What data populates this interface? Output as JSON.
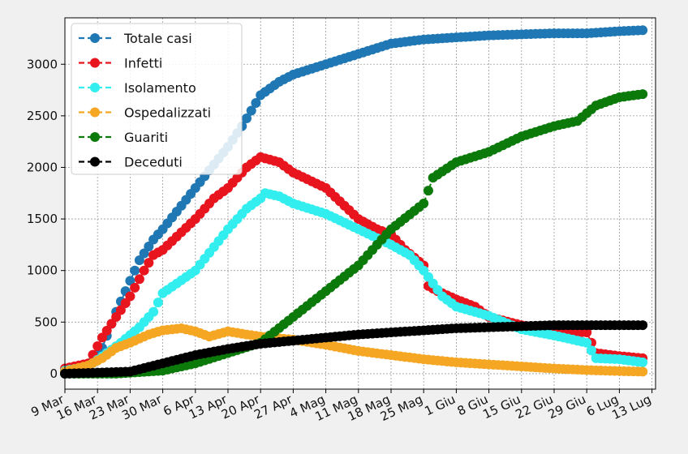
{
  "chart_data": {
    "type": "line",
    "title": "",
    "xlabel": "",
    "ylabel": "",
    "ylim": [
      -150,
      3450
    ],
    "grid": true,
    "legend_position": "top-left",
    "x_ticks": [
      "9 Mar",
      "16 Mar",
      "23 Mar",
      "30 Mar",
      "6 Apr",
      "13 Apr",
      "20 Apr",
      "27 Apr",
      "4 Mag",
      "11 Mag",
      "18 Mag",
      "25 Mag",
      "1 Giu",
      "8 Giu",
      "15 Giu",
      "22 Giu",
      "29 Giu",
      "6 Lug",
      "13 Lug"
    ],
    "y_ticks": [
      0,
      500,
      1000,
      1500,
      2000,
      2500,
      3000
    ],
    "series": [
      {
        "name": "Totale casi",
        "color": "#1f77b4",
        "points": [
          [
            "9 Mar",
            0
          ],
          [
            "14 Mar",
            60
          ],
          [
            "17 Mar",
            250
          ],
          [
            "20 Mar",
            600
          ],
          [
            "23 Mar",
            900
          ],
          [
            "25 Mar",
            1100
          ],
          [
            "28 Mar",
            1300
          ],
          [
            "30 Mar",
            1400
          ],
          [
            "6 Apr",
            1800
          ],
          [
            "13 Apr",
            2200
          ],
          [
            "16 Apr",
            2400
          ],
          [
            "20 Apr",
            2700
          ],
          [
            "24 Apr",
            2830
          ],
          [
            "27 Apr",
            2900
          ],
          [
            "4 Mag",
            3000
          ],
          [
            "11 Mag",
            3100
          ],
          [
            "18 Mag",
            3200
          ],
          [
            "25 Mag",
            3240
          ],
          [
            "1 Giu",
            3260
          ],
          [
            "8 Giu",
            3280
          ],
          [
            "15 Giu",
            3290
          ],
          [
            "22 Giu",
            3300
          ],
          [
            "29 Giu",
            3300
          ],
          [
            "6 Lug",
            3320
          ],
          [
            "11 Lug",
            3330
          ]
        ]
      },
      {
        "name": "Infetti",
        "color": "#e8141e",
        "points": [
          [
            "9 Mar",
            50
          ],
          [
            "14 Mar",
            100
          ],
          [
            "17 Mar",
            350
          ],
          [
            "20 Mar",
            550
          ],
          [
            "23 Mar",
            750
          ],
          [
            "26 Mar",
            1000
          ],
          [
            "28 Mar",
            1150
          ],
          [
            "30 Mar",
            1200
          ],
          [
            "6 Apr",
            1500
          ],
          [
            "10 Apr",
            1700
          ],
          [
            "13 Apr",
            1800
          ],
          [
            "17 Apr",
            2000
          ],
          [
            "20 Apr",
            2100
          ],
          [
            "24 Apr",
            2050
          ],
          [
            "27 Apr",
            1950
          ],
          [
            "4 Mag",
            1800
          ],
          [
            "11 Mag",
            1500
          ],
          [
            "15 Mag",
            1400
          ],
          [
            "18 Mag",
            1350
          ],
          [
            "21 Mag",
            1200
          ],
          [
            "25 Mag",
            1050
          ],
          [
            "26 Mag",
            850
          ],
          [
            "28 Mag",
            800
          ],
          [
            "1 Giu",
            720
          ],
          [
            "5 Giu",
            650
          ],
          [
            "8 Giu",
            550
          ],
          [
            "15 Giu",
            470
          ],
          [
            "22 Giu",
            420
          ],
          [
            "29 Giu",
            400
          ],
          [
            "1 Lug",
            200
          ],
          [
            "6 Lug",
            170
          ],
          [
            "11 Lug",
            150
          ]
        ]
      },
      {
        "name": "Isolamento",
        "color": "#33eeee",
        "points": [
          [
            "9 Mar",
            30
          ],
          [
            "14 Mar",
            70
          ],
          [
            "18 Mar",
            200
          ],
          [
            "21 Mar",
            300
          ],
          [
            "25 Mar",
            450
          ],
          [
            "28 Mar",
            600
          ],
          [
            "30 Mar",
            780
          ],
          [
            "6 Apr",
            1000
          ],
          [
            "13 Apr",
            1400
          ],
          [
            "17 Apr",
            1600
          ],
          [
            "20 Apr",
            1700
          ],
          [
            "21 Apr",
            1750
          ],
          [
            "24 Apr",
            1720
          ],
          [
            "27 Apr",
            1650
          ],
          [
            "4 Mag",
            1550
          ],
          [
            "11 Mag",
            1400
          ],
          [
            "18 Mag",
            1250
          ],
          [
            "22 Mag",
            1150
          ],
          [
            "25 Mag",
            1000
          ],
          [
            "29 Mag",
            750
          ],
          [
            "1 Giu",
            650
          ],
          [
            "8 Giu",
            560
          ],
          [
            "15 Giu",
            430
          ],
          [
            "22 Giu",
            370
          ],
          [
            "29 Giu",
            300
          ],
          [
            "1 Lug",
            150
          ],
          [
            "6 Lug",
            140
          ],
          [
            "11 Lug",
            110
          ]
        ]
      },
      {
        "name": "Ospedalizzati",
        "color": "#f5a623",
        "points": [
          [
            "9 Mar",
            20
          ],
          [
            "14 Mar",
            80
          ],
          [
            "17 Mar",
            150
          ],
          [
            "20 Mar",
            250
          ],
          [
            "23 Mar",
            300
          ],
          [
            "27 Mar",
            380
          ],
          [
            "30 Mar",
            420
          ],
          [
            "3 Apr",
            440
          ],
          [
            "6 Apr",
            410
          ],
          [
            "9 Apr",
            360
          ],
          [
            "13 Apr",
            410
          ],
          [
            "17 Apr",
            380
          ],
          [
            "20 Apr",
            360
          ],
          [
            "27 Apr",
            330
          ],
          [
            "4 Mag",
            280
          ],
          [
            "11 Mag",
            220
          ],
          [
            "18 Mag",
            180
          ],
          [
            "25 Mag",
            140
          ],
          [
            "1 Giu",
            110
          ],
          [
            "8 Giu",
            90
          ],
          [
            "15 Giu",
            70
          ],
          [
            "22 Giu",
            50
          ],
          [
            "29 Giu",
            35
          ],
          [
            "6 Lug",
            25
          ],
          [
            "11 Lug",
            20
          ]
        ]
      },
      {
        "name": "Guariti",
        "color": "#0b7a0b",
        "points": [
          [
            "9 Mar",
            0
          ],
          [
            "20 Mar",
            0
          ],
          [
            "30 Mar",
            30
          ],
          [
            "6 Apr",
            100
          ],
          [
            "13 Apr",
            200
          ],
          [
            "20 Apr",
            300
          ],
          [
            "27 Apr",
            550
          ],
          [
            "4 Mag",
            800
          ],
          [
            "11 Mag",
            1050
          ],
          [
            "18 Mag",
            1400
          ],
          [
            "25 Mag",
            1650
          ],
          [
            "27 Mag",
            1900
          ],
          [
            "1 Giu",
            2050
          ],
          [
            "8 Giu",
            2150
          ],
          [
            "15 Giu",
            2300
          ],
          [
            "22 Giu",
            2400
          ],
          [
            "27 Giu",
            2450
          ],
          [
            "1 Lug",
            2600
          ],
          [
            "6 Lug",
            2680
          ],
          [
            "11 Lug",
            2710
          ]
        ]
      },
      {
        "name": "Deceduti",
        "color": "#000000",
        "points": [
          [
            "9 Mar",
            0
          ],
          [
            "23 Mar",
            20
          ],
          [
            "30 Mar",
            100
          ],
          [
            "6 Apr",
            180
          ],
          [
            "13 Apr",
            240
          ],
          [
            "20 Apr",
            290
          ],
          [
            "27 Apr",
            320
          ],
          [
            "4 Mag",
            350
          ],
          [
            "11 Mag",
            380
          ],
          [
            "18 Mag",
            400
          ],
          [
            "25 Mag",
            420
          ],
          [
            "1 Giu",
            440
          ],
          [
            "8 Giu",
            450
          ],
          [
            "15 Giu",
            460
          ],
          [
            "22 Giu",
            470
          ],
          [
            "29 Giu",
            470
          ],
          [
            "6 Lug",
            470
          ],
          [
            "11 Lug",
            470
          ]
        ]
      }
    ]
  }
}
